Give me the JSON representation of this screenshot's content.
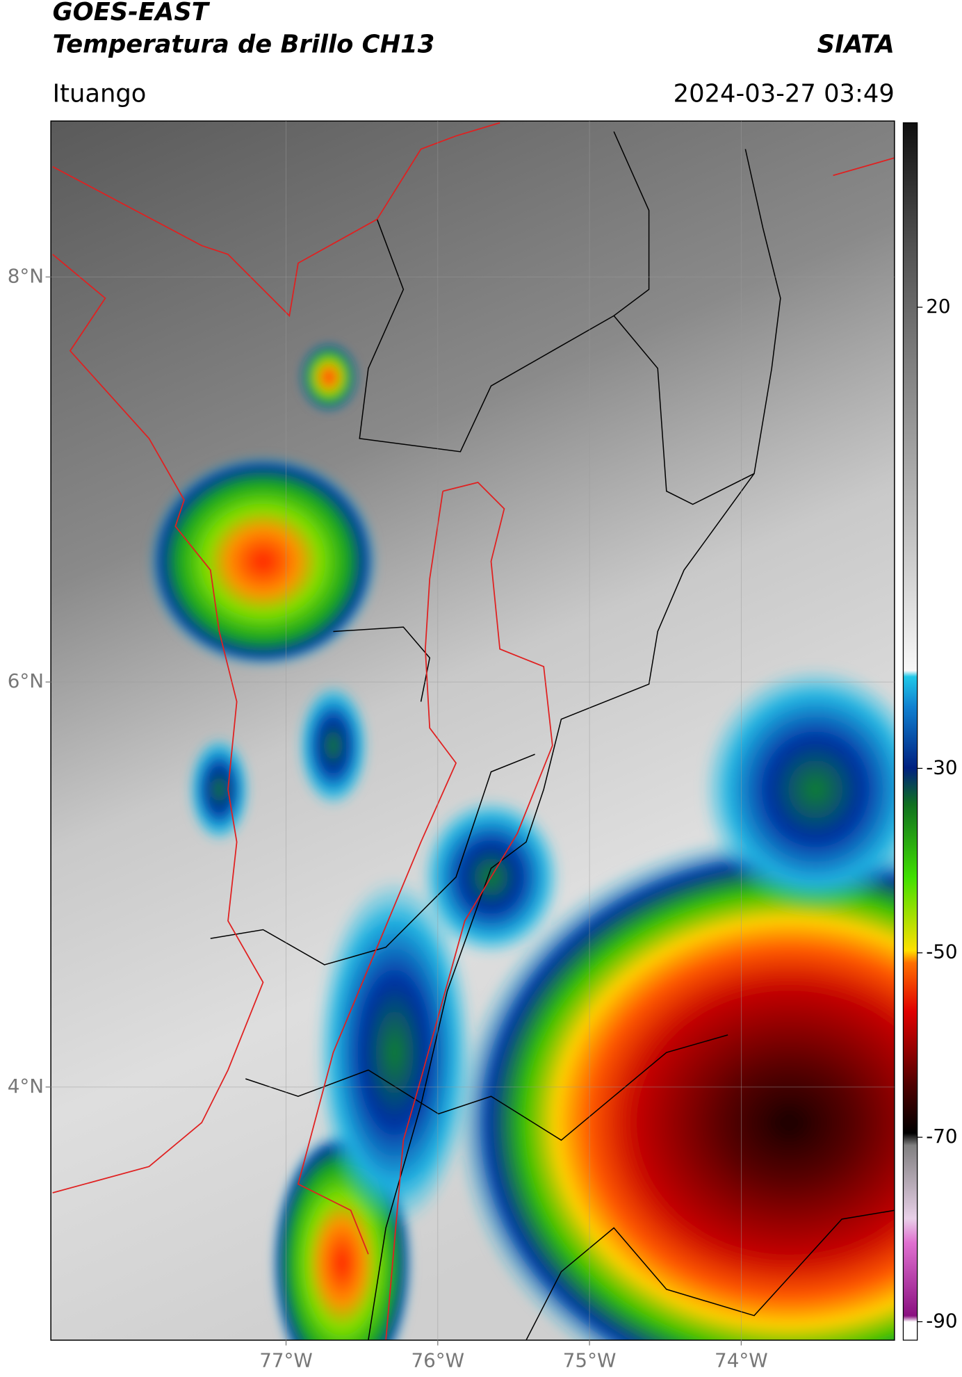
{
  "header": {
    "title": "GOES-EAST",
    "subtitle": "Temperatura de Brillo CH13",
    "agency": "SIATA",
    "region": "Ituango",
    "datetime": "2024-03-27 03:49"
  },
  "map": {
    "xlim": [
      -78.55,
      -72.99
    ],
    "ylim": [
      2.75,
      8.77
    ],
    "xticks": [
      {
        "value": -77,
        "label": "77°W"
      },
      {
        "value": -76,
        "label": "76°W"
      },
      {
        "value": -75,
        "label": "75°W"
      },
      {
        "value": -74,
        "label": "74°W"
      }
    ],
    "yticks": [
      {
        "value": 8,
        "label": "8°N"
      },
      {
        "value": 6,
        "label": "6°N"
      },
      {
        "value": 4,
        "label": "4°N"
      }
    ],
    "grid": true
  },
  "colorbar": {
    "lim": [
      -92,
      40
    ],
    "ticks": [
      20,
      -30,
      -50,
      -70,
      -90
    ]
  }
}
